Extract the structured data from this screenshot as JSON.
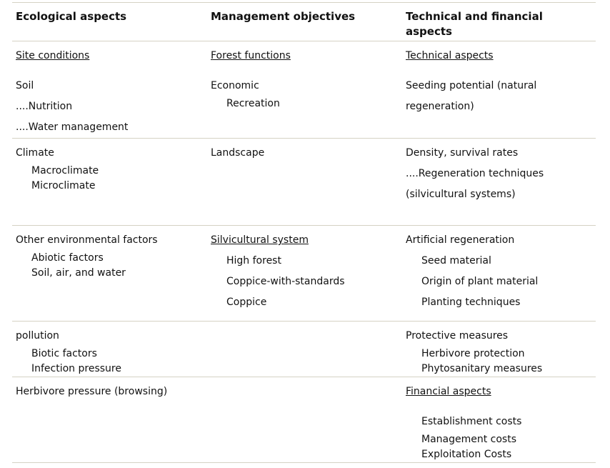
{
  "table": {
    "header": {
      "col1": "Ecological aspects",
      "col2": "Management objectives",
      "col3": "Technical and financial aspects"
    },
    "rows": [
      {
        "col1": {
          "heading": "Site conditions",
          "l1": "Soil",
          "l2": "....Nutrition",
          "l3": "....Water management"
        },
        "col2": {
          "heading": "Forest functions",
          "l1": "Economic",
          "l2": "Recreation"
        },
        "col3": {
          "heading": "Technical aspects",
          "l1": "Seeding potential (natural regeneration)"
        }
      },
      {
        "col1": {
          "l1": "Climate",
          "l2": "Macroclimate",
          "l3": "Microclimate"
        },
        "col2": {
          "l1": "Landscape"
        },
        "col3": {
          "l1": "Density, survival rates",
          "l2": "....Regeneration techniques (silvicultural systems)"
        }
      },
      {
        "col1": {
          "l1": "Other environmental factors",
          "l2": "Abiotic factors",
          "l3": "Soil, air, and water"
        },
        "col2": {
          "heading": "Silvicultural system",
          "l1": "High forest",
          "l2": "Coppice-with-standards",
          "l3": "Coppice"
        },
        "col3": {
          "l1": "Artificial regeneration",
          "l2": "Seed material",
          "l3": "Origin of plant material",
          "l4": "Planting techniques"
        }
      },
      {
        "col1": {
          "l1": "pollution",
          "l2": "Biotic factors",
          "l3": "Infection pressure"
        },
        "col3": {
          "l1": "Protective measures",
          "l2": "Herbivore protection",
          "l3": "Phytosanitary measures"
        }
      },
      {
        "col1": {
          "l1": "Herbivore pressure (browsing)"
        },
        "col3": {
          "heading": "Financial aspects",
          "l1": "Establishment costs",
          "l2": "Management costs",
          "l3": "Exploitation Costs"
        }
      }
    ]
  },
  "colors": {
    "separator": "#d5d2c4",
    "text": "#111111",
    "background": "#ffffff"
  }
}
